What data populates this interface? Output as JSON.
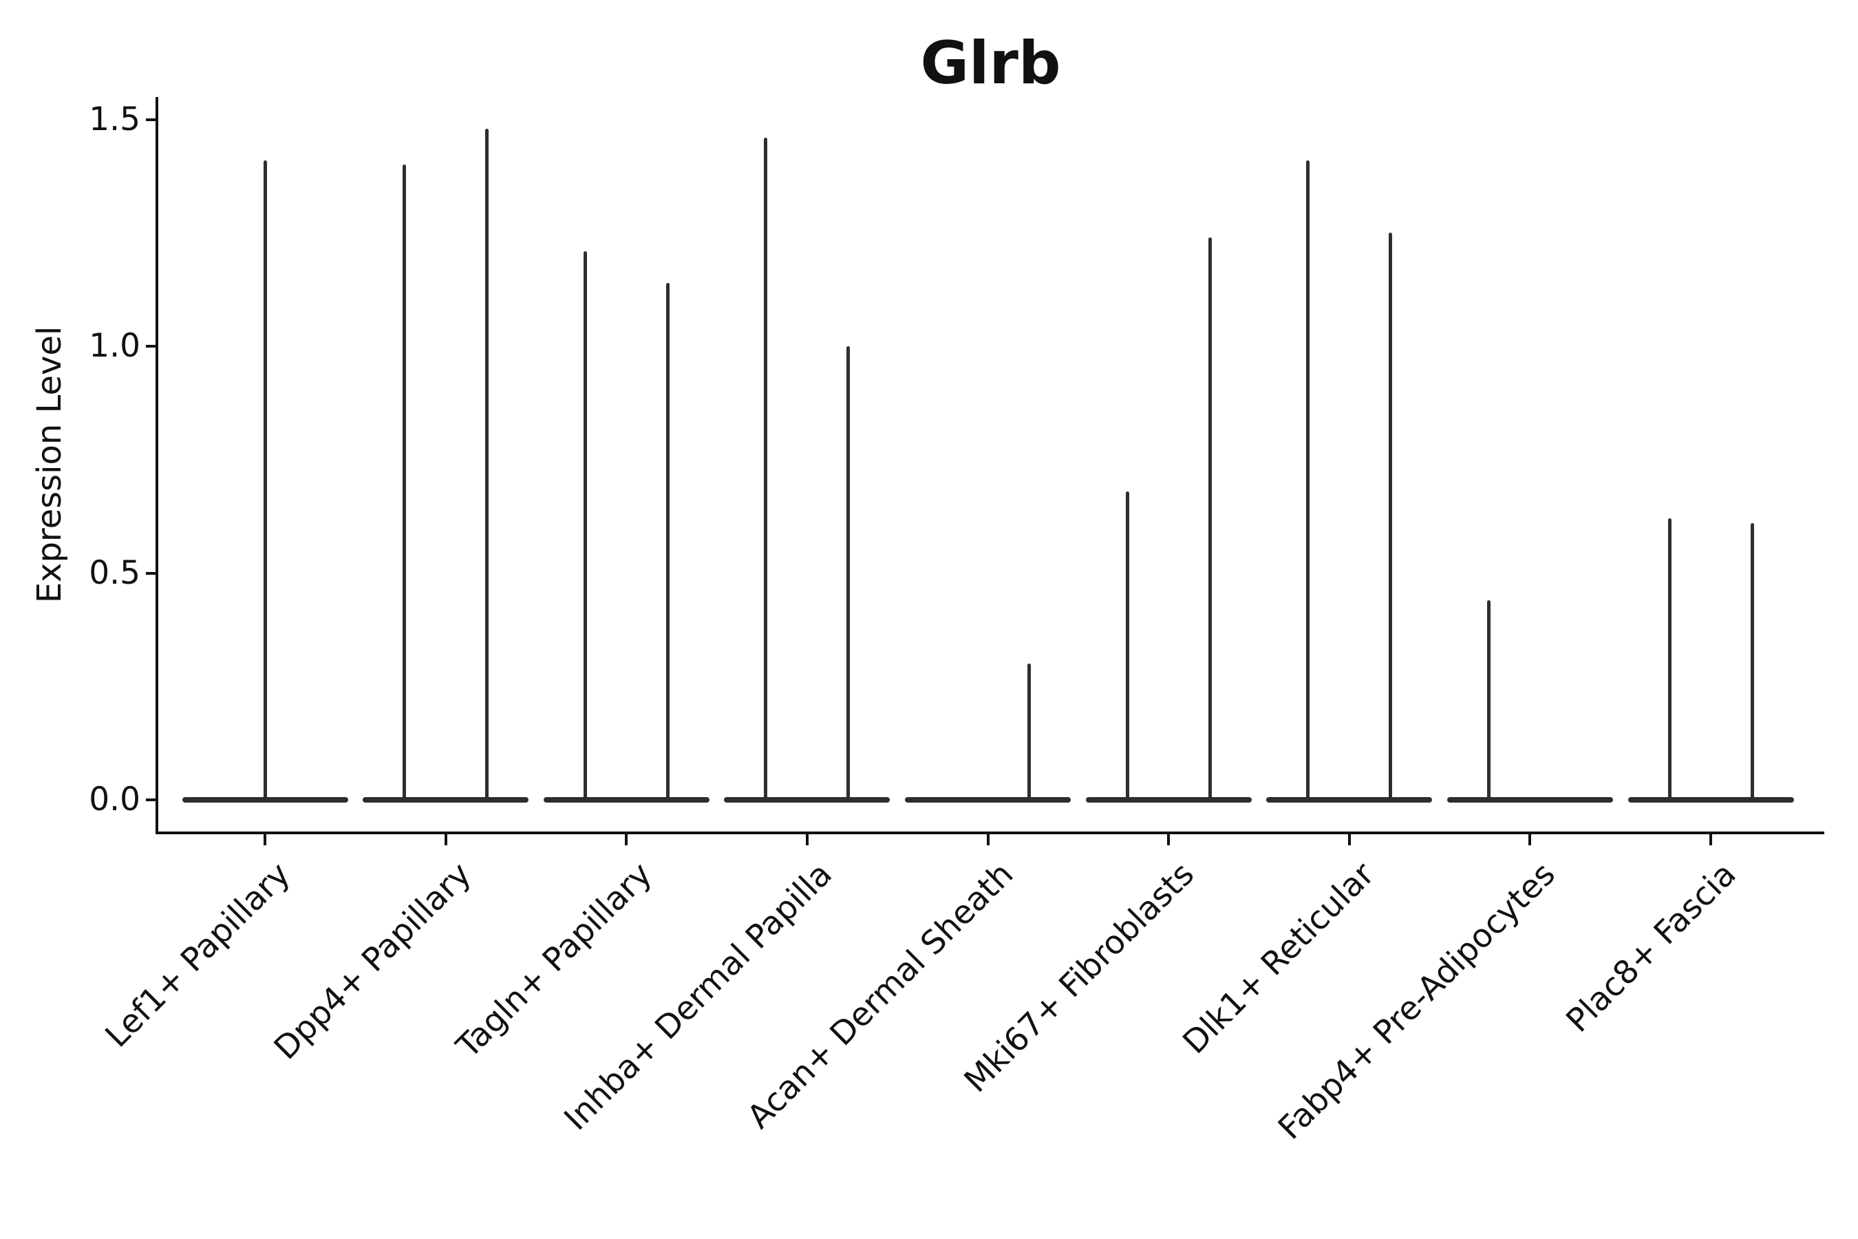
{
  "chart_data": {
    "type": "violin",
    "title": "Glrb",
    "xlabel": "",
    "ylabel": "Expression Level",
    "ylim": [
      0,
      1.55
    ],
    "yticks": [
      {
        "value": 0,
        "label": "0.0"
      },
      {
        "value": 0.5,
        "label": "0.5"
      },
      {
        "value": 1,
        "label": "1.0"
      },
      {
        "value": 1.5,
        "label": "1.5"
      }
    ],
    "grid": false,
    "legend": false,
    "groups": [
      {
        "label": "Lef1+ Papillary",
        "violins": [
          {
            "position": "center",
            "max_expression": 1.41
          }
        ]
      },
      {
        "label": "Dpp4+ Papillary",
        "violins": [
          {
            "position": "left",
            "max_expression": 1.4
          },
          {
            "position": "right",
            "max_expression": 1.48
          }
        ]
      },
      {
        "label": "Tagln+ Papillary",
        "violins": [
          {
            "position": "left",
            "max_expression": 1.21
          },
          {
            "position": "right",
            "max_expression": 1.14
          }
        ]
      },
      {
        "label": "Inhba+ Dermal Papilla",
        "violins": [
          {
            "position": "left",
            "max_expression": 1.46
          },
          {
            "position": "right",
            "max_expression": 1.0
          }
        ]
      },
      {
        "label": "Acan+ Dermal Sheath",
        "violins": [
          {
            "position": "left",
            "max_expression": 0
          },
          {
            "position": "right",
            "max_expression": 0.3
          }
        ]
      },
      {
        "label": "Mki67+ Fibroblasts",
        "violins": [
          {
            "position": "left",
            "max_expression": 0.68
          },
          {
            "position": "right",
            "max_expression": 1.24
          }
        ]
      },
      {
        "label": "Dlk1+ Reticular",
        "violins": [
          {
            "position": "left",
            "max_expression": 1.41
          },
          {
            "position": "right",
            "max_expression": 1.25
          }
        ]
      },
      {
        "label": "Fabp4+ Pre-Adipocytes",
        "violins": [
          {
            "position": "left",
            "max_expression": 0.44
          },
          {
            "position": "right",
            "max_expression": 0
          }
        ]
      },
      {
        "label": "Plac8+ Fascia",
        "violins": [
          {
            "position": "left",
            "max_expression": 0.62
          },
          {
            "position": "right",
            "max_expression": 0.61
          }
        ]
      }
    ],
    "style": {
      "violin_color": "#2e2e2e",
      "axis_color": "#111111",
      "text_color": "#111111",
      "background": "#ffffff"
    }
  }
}
